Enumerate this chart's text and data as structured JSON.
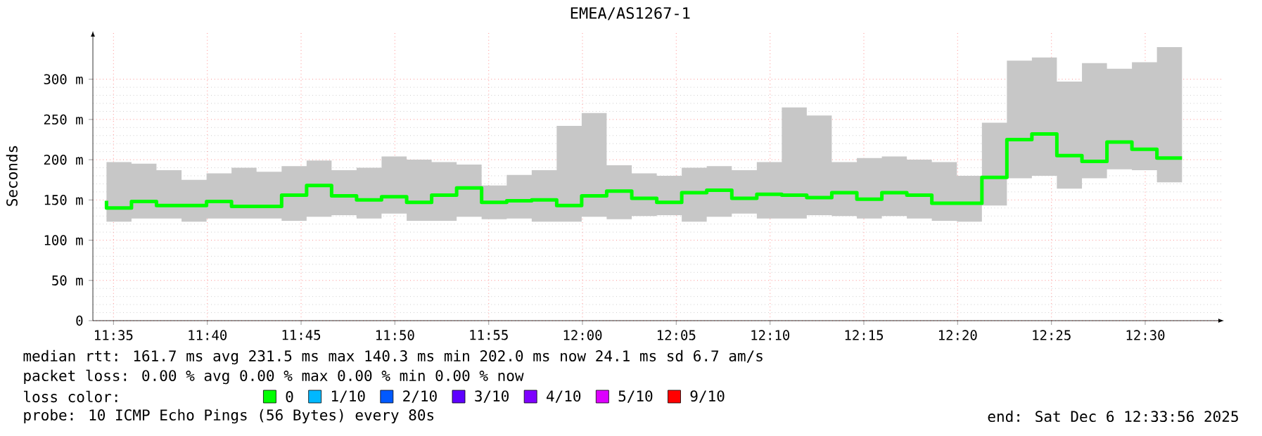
{
  "chart_data": {
    "type": "step",
    "title": "EMEA/AS1267-1",
    "ylabel": "Seconds",
    "legend_title": "loss color:",
    "legend": "bottom",
    "grid": true,
    "xlim": [
      11.565,
      12.57
    ],
    "ylim": [
      0,
      360
    ],
    "xticks": [
      {
        "value": 11.5833,
        "label": "11:35"
      },
      {
        "value": 11.6667,
        "label": "11:40"
      },
      {
        "value": 11.75,
        "label": "11:45"
      },
      {
        "value": 11.8333,
        "label": "11:50"
      },
      {
        "value": 11.9167,
        "label": "11:55"
      },
      {
        "value": 12.0,
        "label": "12:00"
      },
      {
        "value": 12.0833,
        "label": "12:05"
      },
      {
        "value": 12.1667,
        "label": "12:10"
      },
      {
        "value": 12.25,
        "label": "12:15"
      },
      {
        "value": 12.3333,
        "label": "12:20"
      },
      {
        "value": 12.4167,
        "label": "12:25"
      },
      {
        "value": 12.5,
        "label": "12:30"
      }
    ],
    "yticks": [
      0,
      {
        "value": 50,
        "label": "50 m"
      },
      {
        "value": 100,
        "label": "100 m"
      },
      {
        "value": 150,
        "label": "150 m"
      },
      {
        "value": 200,
        "label": "200 m"
      },
      {
        "value": 250,
        "label": "250 m"
      },
      {
        "value": 300,
        "label": "300 m"
      }
    ],
    "x": [
      11.5771,
      11.5993,
      11.6215,
      11.6438,
      11.666,
      11.6882,
      11.7104,
      11.7327,
      11.7549,
      11.7771,
      11.7993,
      11.8215,
      11.8438,
      11.866,
      11.8882,
      11.9104,
      11.9327,
      11.9549,
      11.9771,
      11.9993,
      12.0215,
      12.0438,
      12.066,
      12.0882,
      12.1104,
      12.1327,
      12.1549,
      12.1771,
      12.1993,
      12.2215,
      12.2438,
      12.266,
      12.2882,
      12.3104,
      12.3327,
      12.3549,
      12.3771,
      12.3993,
      12.4215,
      12.4438,
      12.466,
      12.4882,
      12.5104,
      12.5327
    ],
    "series": [
      {
        "name": "0",
        "color": "#00ff00",
        "values": [
          149,
          140,
          148,
          143,
          143,
          148,
          142,
          142,
          156,
          168,
          155,
          150,
          154,
          147,
          156,
          165,
          147,
          149,
          150,
          143,
          155,
          161,
          152,
          147,
          159,
          162,
          152,
          157,
          156,
          153,
          159,
          151,
          159,
          156,
          146,
          146,
          178,
          225,
          232,
          205,
          198,
          222,
          213,
          202
        ],
        "upper": [
          190,
          197,
          195,
          187,
          175,
          183,
          190,
          185,
          192,
          199,
          187,
          190,
          204,
          200,
          197,
          194,
          168,
          181,
          187,
          242,
          258,
          193,
          183,
          180,
          190,
          192,
          187,
          197,
          265,
          255,
          197,
          202,
          204,
          200,
          197,
          180,
          246,
          323,
          327,
          297,
          320,
          313,
          321,
          340
        ],
        "lower": [
          129,
          123,
          127,
          127,
          123,
          127,
          127,
          127,
          124,
          129,
          131,
          127,
          133,
          124,
          124,
          129,
          126,
          127,
          123,
          123,
          129,
          126,
          130,
          131,
          123,
          129,
          133,
          127,
          127,
          131,
          130,
          127,
          130,
          127,
          124,
          123,
          143,
          177,
          180,
          164,
          177,
          188,
          187,
          172
        ]
      },
      {
        "name": "1/10",
        "color": "#00b8ff",
        "values": [
          null,
          null,
          null,
          null,
          null,
          null,
          null,
          null,
          null,
          null,
          null,
          null,
          null,
          null,
          null,
          null,
          null,
          null,
          null,
          null,
          null,
          null,
          null,
          null,
          null,
          null,
          null,
          null,
          null,
          null,
          null,
          null,
          null,
          null,
          null,
          null,
          null,
          null,
          null,
          null,
          null,
          null,
          null,
          null
        ]
      },
      {
        "name": "2/10",
        "color": "#0059ff",
        "values": [
          null,
          null,
          null,
          null,
          null,
          null,
          null,
          null,
          null,
          null,
          null,
          null,
          null,
          null,
          null,
          null,
          null,
          null,
          null,
          null,
          null,
          null,
          null,
          null,
          null,
          null,
          null,
          null,
          null,
          null,
          null,
          null,
          null,
          null,
          null,
          null,
          null,
          null,
          null,
          null,
          null,
          null,
          null,
          null
        ]
      },
      {
        "name": "3/10",
        "color": "#5e00ff",
        "values": [
          null,
          null,
          null,
          null,
          null,
          null,
          null,
          null,
          null,
          null,
          null,
          null,
          null,
          null,
          null,
          null,
          null,
          null,
          null,
          null,
          null,
          null,
          null,
          null,
          null,
          null,
          null,
          null,
          null,
          null,
          null,
          null,
          null,
          null,
          null,
          null,
          null,
          null,
          null,
          null,
          null,
          null,
          null,
          null
        ]
      },
      {
        "name": "4/10",
        "color": "#7e00ff",
        "values": [
          null,
          null,
          null,
          null,
          null,
          null,
          null,
          null,
          null,
          null,
          null,
          null,
          null,
          null,
          null,
          null,
          null,
          null,
          null,
          null,
          null,
          null,
          null,
          null,
          null,
          null,
          null,
          null,
          null,
          null,
          null,
          null,
          null,
          null,
          null,
          null,
          null,
          null,
          null,
          null,
          null,
          null,
          null,
          null
        ]
      },
      {
        "name": "5/10",
        "color": "#dd00ff",
        "values": [
          null,
          null,
          null,
          null,
          null,
          null,
          null,
          null,
          null,
          null,
          null,
          null,
          null,
          null,
          null,
          null,
          null,
          null,
          null,
          null,
          null,
          null,
          null,
          null,
          null,
          null,
          null,
          null,
          null,
          null,
          null,
          null,
          null,
          null,
          null,
          null,
          null,
          null,
          null,
          null,
          null,
          null,
          null,
          null
        ]
      },
      {
        "name": "9/10",
        "color": "#ff0000",
        "values": [
          null,
          null,
          null,
          null,
          null,
          null,
          null,
          null,
          null,
          null,
          null,
          null,
          null,
          null,
          null,
          null,
          null,
          null,
          null,
          null,
          null,
          null,
          null,
          null,
          null,
          null,
          null,
          null,
          null,
          null,
          null,
          null,
          null,
          null,
          null,
          null,
          null,
          null,
          null,
          null,
          null,
          null,
          null,
          null
        ]
      }
    ],
    "annotations": [
      "median rtt:  161.7 ms avg  231.5 ms max  140.3 ms min  202.0 ms now  24.1 ms sd  6.7   am/s",
      "packet loss: 0.00 % avg  0.00 % max  0.00 % min  0.00 % now",
      "probe:       10 ICMP Echo Pings (56 Bytes) every 80s",
      "end: Sat Dec  6 12:33:56 2025"
    ]
  }
}
